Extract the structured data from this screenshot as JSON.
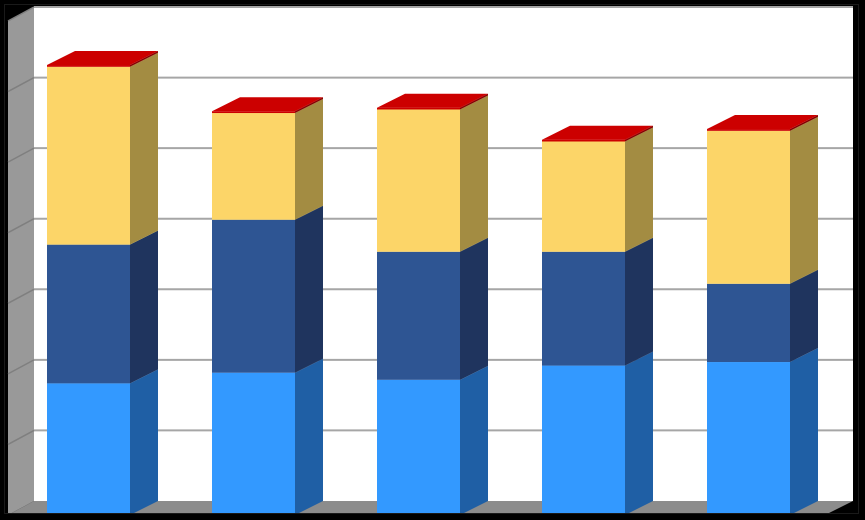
{
  "chart_data": {
    "type": "bar",
    "stacked": true,
    "three_d": true,
    "categories": [
      "",
      "",
      "",
      "",
      ""
    ],
    "series": [
      {
        "values": [
          37,
          40,
          38,
          42,
          43
        ],
        "color": "#3399FF",
        "side_color": "#1F5FA5"
      },
      {
        "values": [
          39,
          43,
          36,
          32,
          22
        ],
        "color": "#2E5593",
        "side_color": "#1F345E"
      },
      {
        "values": [
          50,
          30,
          40,
          31,
          43
        ],
        "color": "#FCD568",
        "side_color": "#A38C42"
      },
      {
        "values": [
          0.5,
          0.5,
          0.5,
          0.5,
          0.5
        ],
        "color": "#CC0000",
        "side_color": "#880000"
      }
    ],
    "ylim": [
      0,
      140
    ],
    "ytick_step": 20,
    "grid": true,
    "legend": "none",
    "title": "",
    "xlabel": "",
    "ylabel": "",
    "colors": {
      "plot_background": "#FFFFFF",
      "gridline": "#A6A6A6",
      "side_wall": "#999999",
      "floor": "#8C8C8C"
    }
  }
}
